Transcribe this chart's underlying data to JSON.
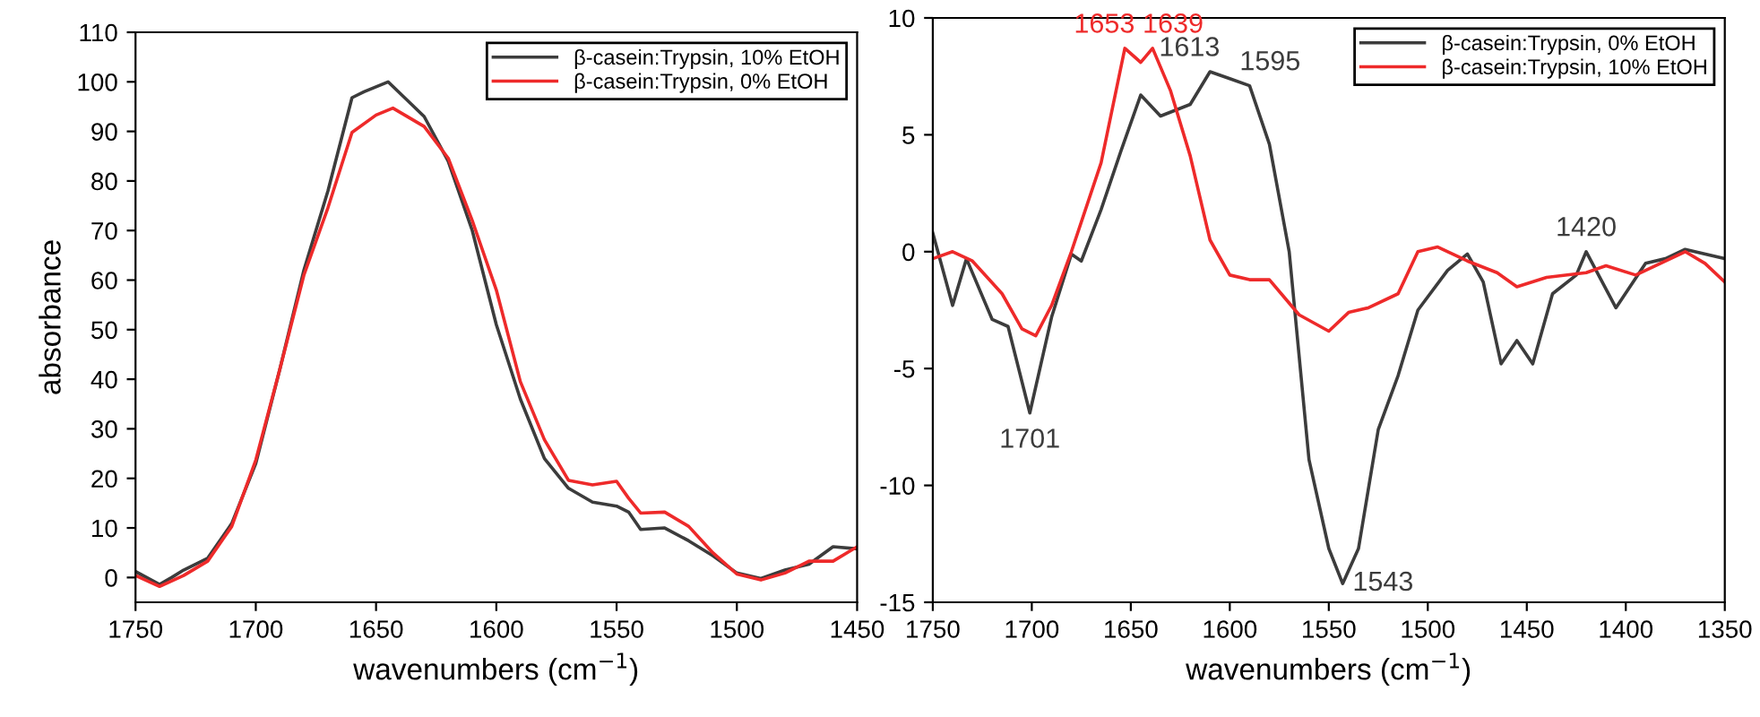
{
  "chart_data": [
    {
      "type": "line",
      "xlabel": "wavenumbers (cm$^{−1}$)",
      "ylabel": "absorbance",
      "xlim": [
        1750,
        1450
      ],
      "ylim": [
        -5,
        110
      ],
      "xticks": [
        1750,
        1700,
        1650,
        1600,
        1550,
        1500,
        1450
      ],
      "yticks": [
        0,
        10,
        20,
        30,
        40,
        50,
        60,
        70,
        80,
        90,
        100,
        110
      ],
      "legend": "top right",
      "grid": false,
      "series": [
        {
          "name": "β-casein:Trypsin, 10% EtOH",
          "color": "#3c3c3c",
          "x": [
            1750,
            1740,
            1735,
            1730,
            1720,
            1710,
            1700,
            1690,
            1680,
            1670,
            1660,
            1655,
            1645,
            1630,
            1620,
            1610,
            1600,
            1590,
            1580,
            1570,
            1560,
            1550,
            1545,
            1540,
            1530,
            1520,
            1510,
            1500,
            1490,
            1480,
            1470,
            1460,
            1450
          ],
          "values": [
            1.2,
            -1.4,
            0,
            1.5,
            3.9,
            10.9,
            23,
            42,
            62,
            78,
            96.8,
            98,
            100,
            93,
            84,
            70,
            51,
            36,
            24,
            18,
            15.2,
            14.4,
            13.2,
            9.7,
            10,
            7.4,
            4.4,
            0.9,
            -0.2,
            1.5,
            2.7,
            6.2,
            5.8
          ]
        },
        {
          "name": "β-casein:Trypsin, 0% EtOH",
          "color": "#ee2a2a",
          "x": [
            1750,
            1740,
            1730,
            1720,
            1710,
            1700,
            1690,
            1680,
            1670,
            1660,
            1650,
            1643,
            1630,
            1620,
            1610,
            1600,
            1590,
            1580,
            1570,
            1560,
            1550,
            1545,
            1540,
            1530,
            1520,
            1510,
            1500,
            1490,
            1480,
            1470,
            1460,
            1450
          ],
          "values": [
            0.4,
            -1.8,
            0.4,
            3.3,
            10.3,
            23.7,
            42,
            61,
            74.6,
            89.8,
            93.3,
            94.7,
            91,
            84.6,
            72,
            58,
            39.5,
            27.8,
            19.6,
            18.7,
            19.4,
            16,
            13,
            13.2,
            10.3,
            5,
            0.7,
            -0.5,
            0.9,
            3.3,
            3.3,
            6.2
          ]
        }
      ]
    },
    {
      "type": "line",
      "xlabel": "wavenumbers (cm$^{−1}$)",
      "xlim": [
        1750,
        1350
      ],
      "ylim": [
        -15,
        10
      ],
      "xticks": [
        1750,
        1700,
        1650,
        1600,
        1550,
        1500,
        1450,
        1400,
        1350
      ],
      "yticks": [
        -15,
        -10,
        -5,
        0,
        5,
        10
      ],
      "legend": "top right",
      "grid": false,
      "series": [
        {
          "name": "β-casein:Trypsin, 0% EtOH",
          "color": "#3c3c3c",
          "x": [
            1750,
            1740,
            1733,
            1720,
            1712,
            1701,
            1690,
            1680,
            1675,
            1665,
            1655,
            1645,
            1635,
            1620,
            1610,
            1600,
            1590,
            1580,
            1570,
            1560,
            1550,
            1543,
            1535,
            1525,
            1515,
            1505,
            1490,
            1480,
            1472,
            1463,
            1455,
            1447,
            1437,
            1425,
            1420,
            1405,
            1390,
            1380,
            1370,
            1350
          ],
          "values": [
            0.8,
            -2.3,
            -0.3,
            -2.9,
            -3.2,
            -6.9,
            -2.8,
            -0.1,
            -0.4,
            1.8,
            4.3,
            6.7,
            5.8,
            6.3,
            7.7,
            7.4,
            7.1,
            4.6,
            0,
            -8.9,
            -12.7,
            -14.2,
            -12.7,
            -7.6,
            -5.3,
            -2.5,
            -0.8,
            -0.1,
            -1.3,
            -4.8,
            -3.8,
            -4.8,
            -1.8,
            -1,
            0,
            -2.4,
            -0.5,
            -0.3,
            0.1,
            -0.3
          ]
        },
        {
          "name": "β-casein:Trypsin, 10% EtOH",
          "color": "#ee2a2a",
          "x": [
            1750,
            1740,
            1730,
            1715,
            1705,
            1698,
            1690,
            1680,
            1665,
            1653,
            1645,
            1639,
            1630,
            1620,
            1610,
            1600,
            1590,
            1580,
            1572,
            1565,
            1550,
            1540,
            1530,
            1515,
            1505,
            1495,
            1480,
            1465,
            1455,
            1440,
            1420,
            1410,
            1395,
            1370,
            1360,
            1350
          ],
          "values": [
            -0.3,
            0,
            -0.4,
            -1.8,
            -3.3,
            -3.6,
            -2.3,
            0,
            3.8,
            8.7,
            8.1,
            8.7,
            6.9,
            4.1,
            0.5,
            -1,
            -1.2,
            -1.2,
            -2,
            -2.7,
            -3.4,
            -2.6,
            -2.4,
            -1.8,
            0,
            0.2,
            -0.4,
            -0.9,
            -1.5,
            -1.1,
            -0.9,
            -0.6,
            -1,
            0,
            -0.5,
            -1.3
          ]
        }
      ],
      "annotations": [
        {
          "text": "1653",
          "x": 1653,
          "y": 8.7
        },
        {
          "text": "1639",
          "x": 1639,
          "y": 8.7
        },
        {
          "text": "1613",
          "x": 1610,
          "y": 7.7
        },
        {
          "text": "1595",
          "x": 1590,
          "y": 7.1
        },
        {
          "text": "1701",
          "x": 1701,
          "y": -6.9
        },
        {
          "text": "1543",
          "x": 1543,
          "y": -14.2
        },
        {
          "text": "1420",
          "x": 1420,
          "y": 0
        }
      ]
    }
  ]
}
